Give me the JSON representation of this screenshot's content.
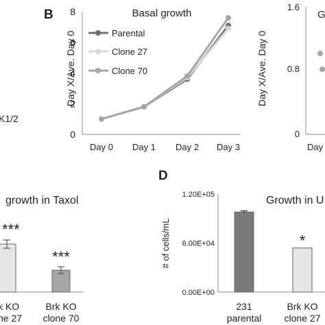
{
  "panel_labels": {
    "b": "B",
    "d": "D"
  },
  "fragments": {
    "left_top_label": "K1/2",
    "left_bottom_title": "growth in Taxol",
    "left_bottom_stars_a": "***",
    "left_bottom_stars_b": "***",
    "left_bottom_cat_a_line1": "k KO",
    "left_bottom_cat_a_line2": "ne 27",
    "left_bottom_cat_b_line1": "Brk KO",
    "left_bottom_cat_b_line2": "clone 70",
    "right_top_title": "G",
    "right_top_ylabel": "Day X/Ave. Day 0",
    "right_top_yticks": [
      "1.6",
      "0.8",
      "0"
    ],
    "right_top_xtick": "Day"
  },
  "chart_data": [
    {
      "type": "line",
      "title": "Basal growth",
      "ylabel": "Day X/Ave. Day 0",
      "categories": [
        "Day 0",
        "Day 1",
        "Day 2",
        "Day 3"
      ],
      "ylim": [
        0,
        8
      ],
      "yticks": [
        "0",
        "2",
        "4",
        "6",
        "8"
      ],
      "legend_position": "top-left",
      "series": [
        {
          "name": "Parental",
          "values": [
            1.0,
            1.8,
            3.6,
            7.1
          ],
          "color": "#707070"
        },
        {
          "name": "Clone 27",
          "values": [
            1.0,
            1.8,
            3.7,
            6.9
          ],
          "color": "#d8d8d8"
        },
        {
          "name": "Clone 70",
          "values": [
            1.0,
            1.8,
            3.8,
            7.6
          ],
          "color": "#a6a6a6"
        }
      ]
    },
    {
      "type": "bar",
      "title": "Growth in U",
      "ylabel": "# of cells/mL",
      "categories": [
        "231 parental",
        "Brk KO clone 27"
      ],
      "category_lines": [
        [
          "231",
          "parental"
        ],
        [
          "Brk KO",
          "clone 27"
        ]
      ],
      "values": [
        98000,
        54000
      ],
      "errors": [
        1500,
        0
      ],
      "colors": [
        "#7a7a7a",
        "#e6e6e6"
      ],
      "annotations": [
        "",
        "*"
      ],
      "ylim": [
        0,
        120000
      ],
      "yticks": [
        "0.00E+00",
        "6.00E+04",
        "1.20E+05"
      ]
    }
  ]
}
